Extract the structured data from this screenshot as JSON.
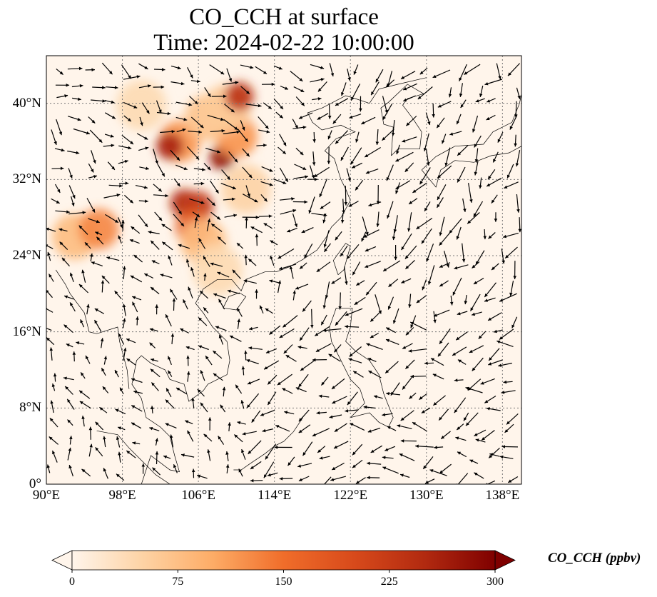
{
  "title": {
    "line1": "CO_CCH at surface",
    "line2": "Time: 2024-02-22 10:00:00"
  },
  "map": {
    "lon_range": [
      90,
      140
    ],
    "lat_range": [
      0,
      45
    ],
    "lon_ticks": [
      {
        "value": 90,
        "label": "90°E"
      },
      {
        "value": 98,
        "label": "98°E"
      },
      {
        "value": 106,
        "label": "106°E"
      },
      {
        "value": 114,
        "label": "114°E"
      },
      {
        "value": 122,
        "label": "122°E"
      },
      {
        "value": 130,
        "label": "130°E"
      },
      {
        "value": 138,
        "label": "138°E"
      }
    ],
    "lat_ticks": [
      {
        "value": 0,
        "label": "0°"
      },
      {
        "value": 8,
        "label": "8°N"
      },
      {
        "value": 16,
        "label": "16°N"
      },
      {
        "value": 24,
        "label": "24°N"
      },
      {
        "value": 32,
        "label": "32°N"
      },
      {
        "value": 40,
        "label": "40°N"
      }
    ],
    "gridlines": true,
    "background_color": "#fff5eb"
  },
  "colorbar": {
    "label": "CO_CCH (ppbv)",
    "min": 0,
    "max": 300,
    "ticks": [
      {
        "value": 0,
        "label": "0"
      },
      {
        "value": 75,
        "label": "75"
      },
      {
        "value": 150,
        "label": "150"
      },
      {
        "value": 225,
        "label": "225"
      },
      {
        "value": 300,
        "label": "300"
      }
    ],
    "colors": [
      "#fff5eb",
      "#fdd3a5",
      "#fdac66",
      "#f06d2a",
      "#d84a1b",
      "#b22a10",
      "#7f0000"
    ],
    "extend": "both"
  },
  "concentration_blobs": [
    {
      "lon": 104,
      "lat": 36,
      "value": 120
    },
    {
      "lon": 103,
      "lat": 35.5,
      "value": 260
    },
    {
      "lon": 108.5,
      "lat": 34.3,
      "value": 280
    },
    {
      "lon": 110,
      "lat": 36.5,
      "value": 120
    },
    {
      "lon": 107,
      "lat": 38.5,
      "value": 70
    },
    {
      "lon": 109,
      "lat": 39.5,
      "value": 60
    },
    {
      "lon": 110.3,
      "lat": 40.7,
      "value": 240
    },
    {
      "lon": 104.5,
      "lat": 29.5,
      "value": 250
    },
    {
      "lon": 106,
      "lat": 29.2,
      "value": 230
    },
    {
      "lon": 105.5,
      "lat": 27,
      "value": 170
    },
    {
      "lon": 106.5,
      "lat": 25.5,
      "value": 80
    },
    {
      "lon": 93,
      "lat": 26,
      "value": 80
    },
    {
      "lon": 95.5,
      "lat": 26.8,
      "value": 130
    },
    {
      "lon": 108,
      "lat": 22.5,
      "value": 40
    },
    {
      "lon": 111,
      "lat": 31,
      "value": 50
    },
    {
      "lon": 100,
      "lat": 39.8,
      "value": 40
    }
  ],
  "wind_field": {
    "description": "surface wind vectors",
    "regions": [
      {
        "name": "north",
        "u": 1.0,
        "v": -0.6
      },
      {
        "name": "east-sea",
        "u": -0.6,
        "v": -1.0
      },
      {
        "name": "tropics",
        "u": -1.0,
        "v": -0.3
      }
    ]
  }
}
